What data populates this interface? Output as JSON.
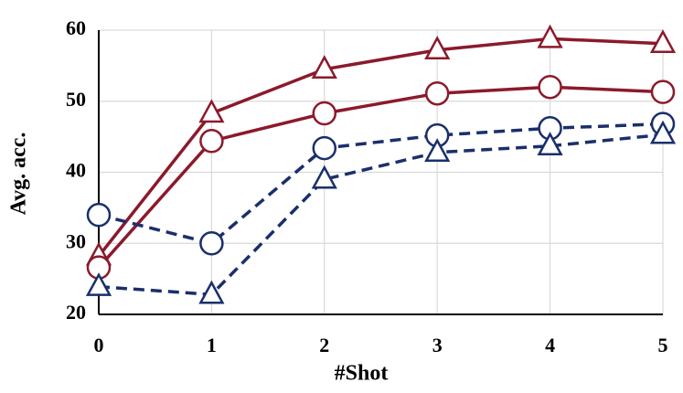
{
  "chart_data": {
    "type": "line",
    "x_label": "#Shot",
    "y_label": "Avg. acc.",
    "x": [
      0,
      1,
      2,
      3,
      4,
      5
    ],
    "xlim": [
      0,
      5
    ],
    "xticks": [
      0,
      1,
      2,
      3,
      4,
      5
    ],
    "ylim": [
      20,
      60
    ],
    "yticks": [
      20,
      30,
      40,
      50,
      60
    ],
    "grid": true,
    "series": [
      {
        "color": "#8b1a2b",
        "marker": "triangle",
        "dashed": false,
        "values": [
          28.2,
          48.3,
          54.5,
          57.2,
          58.8,
          58.1
        ]
      },
      {
        "color": "#8b1a2b",
        "marker": "circle",
        "dashed": false,
        "values": [
          26.6,
          44.4,
          48.3,
          51.1,
          52.0,
          51.3
        ]
      },
      {
        "color": "#1a2f6b",
        "marker": "circle",
        "dashed": true,
        "values": [
          34.0,
          30.0,
          43.4,
          45.2,
          46.2,
          46.8
        ]
      },
      {
        "color": "#1a2f6b",
        "marker": "triangle",
        "dashed": true,
        "values": [
          23.9,
          22.8,
          39.0,
          42.8,
          43.7,
          45.3
        ]
      }
    ]
  }
}
